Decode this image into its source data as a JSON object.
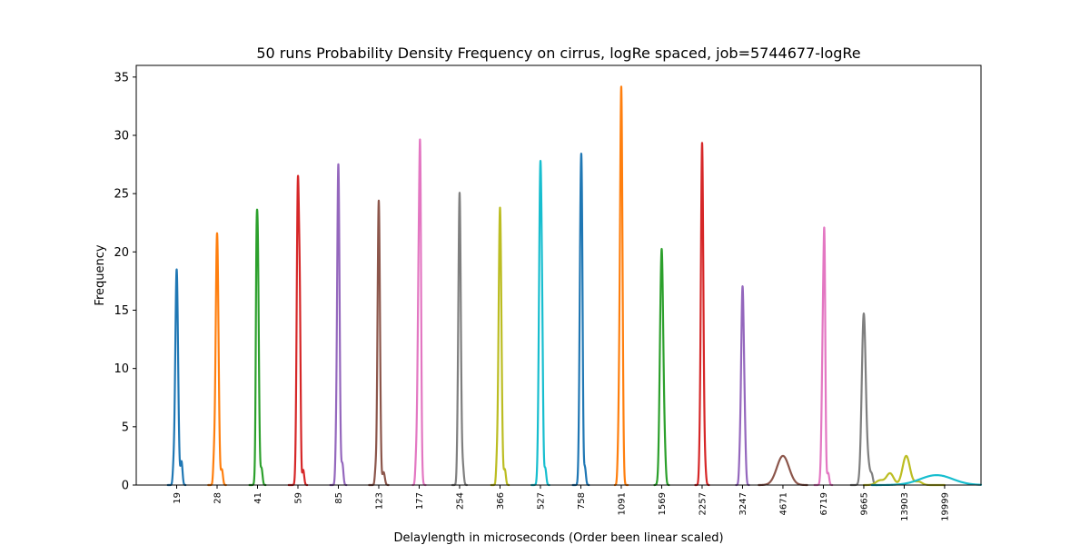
{
  "chart_data": {
    "type": "line",
    "title": "50 runs Probability Density Frequency on cirrus, logRe spaced, job=5744677-logRe",
    "xlabel": "Delaylength in microseconds (Order been linear scaled)",
    "ylabel": "Frequency",
    "ylim": [
      0,
      36
    ],
    "yticks": [
      0,
      5,
      10,
      15,
      20,
      25,
      30,
      35
    ],
    "xlim": [
      -1,
      19.9
    ],
    "grid": false,
    "categories": [
      "19",
      "28",
      "41",
      "59",
      "85",
      "123",
      "177",
      "254",
      "366",
      "527",
      "758",
      "1091",
      "1569",
      "2257",
      "3247",
      "4671",
      "6719",
      "9665",
      "13903",
      "19999"
    ],
    "series": [
      {
        "category": "19",
        "color": "#1f77b4",
        "peaks": [
          {
            "x": 0.0,
            "amp": 18.5,
            "w": 0.035
          },
          {
            "x": 0.12,
            "amp": 2.0,
            "w": 0.025
          },
          {
            "x": -0.08,
            "amp": 1.0,
            "w": 0.02
          }
        ]
      },
      {
        "category": "28",
        "color": "#ff7f0e",
        "peaks": [
          {
            "x": 0.0,
            "amp": 21.6,
            "w": 0.035
          },
          {
            "x": 0.12,
            "amp": 1.3,
            "w": 0.025
          },
          {
            "x": -0.08,
            "amp": 1.5,
            "w": 0.02
          }
        ]
      },
      {
        "category": "41",
        "color": "#2ca02c",
        "peaks": [
          {
            "x": 0.0,
            "amp": 22.2,
            "w": 0.03
          },
          {
            "x": 0.1,
            "amp": 1.4,
            "w": 0.025
          },
          {
            "x": -0.03,
            "amp": 6.4,
            "w": 0.015
          }
        ]
      },
      {
        "category": "59",
        "color": "#d62728",
        "peaks": [
          {
            "x": 0.0,
            "amp": 26.0,
            "w": 0.03
          },
          {
            "x": 0.05,
            "amp": 10.4,
            "w": 0.02
          },
          {
            "x": 0.13,
            "amp": 1.3,
            "w": 0.025
          }
        ]
      },
      {
        "category": "85",
        "color": "#9467bd",
        "peaks": [
          {
            "x": 0.0,
            "amp": 27.5,
            "w": 0.03
          },
          {
            "x": 0.1,
            "amp": 1.8,
            "w": 0.025
          },
          {
            "x": -0.06,
            "amp": 1.7,
            "w": 0.02
          }
        ]
      },
      {
        "category": "123",
        "color": "#8c564b",
        "peaks": [
          {
            "x": 0.0,
            "amp": 24.4,
            "w": 0.03
          },
          {
            "x": 0.12,
            "amp": 1.1,
            "w": 0.03
          },
          {
            "x": -0.08,
            "amp": 1.1,
            "w": 0.02
          }
        ]
      },
      {
        "category": "177",
        "color": "#e377c2",
        "peaks": [
          {
            "x": 0.0,
            "amp": 21.4,
            "w": 0.035
          },
          {
            "x": 0.03,
            "amp": 13.0,
            "w": 0.02
          },
          {
            "x": -0.08,
            "amp": 1.4,
            "w": 0.02
          }
        ]
      },
      {
        "category": "254",
        "color": "#7f7f7f",
        "peaks": [
          {
            "x": 0.0,
            "amp": 25.0,
            "w": 0.03
          },
          {
            "x": 0.08,
            "amp": 1.5,
            "w": 0.025
          },
          {
            "x": -0.05,
            "amp": 1.5,
            "w": 0.02
          }
        ]
      },
      {
        "category": "366",
        "color": "#bcbd22",
        "peaks": [
          {
            "x": 0.0,
            "amp": 23.8,
            "w": 0.035
          },
          {
            "x": 0.12,
            "amp": 1.3,
            "w": 0.025
          },
          {
            "x": -0.08,
            "amp": 1.3,
            "w": 0.02
          }
        ]
      },
      {
        "category": "527",
        "color": "#17becf",
        "peaks": [
          {
            "x": 0.0,
            "amp": 27.6,
            "w": 0.035
          },
          {
            "x": 0.05,
            "amp": 4.5,
            "w": 0.02
          },
          {
            "x": 0.12,
            "amp": 1.4,
            "w": 0.025
          }
        ]
      },
      {
        "category": "758",
        "color": "#1f77b4",
        "peaks": [
          {
            "x": 0.0,
            "amp": 24.6,
            "w": 0.03
          },
          {
            "x": 0.03,
            "amp": 8.5,
            "w": 0.02
          },
          {
            "x": 0.1,
            "amp": 1.5,
            "w": 0.025
          }
        ]
      },
      {
        "category": "1091",
        "color": "#ff7f0e",
        "peaks": [
          {
            "x": 0.0,
            "amp": 34.0,
            "w": 0.03
          },
          {
            "x": -0.05,
            "amp": 4.0,
            "w": 0.02
          },
          {
            "x": -0.08,
            "amp": 2.0,
            "w": 0.02
          }
        ]
      },
      {
        "category": "1569",
        "color": "#2ca02c",
        "peaks": [
          {
            "x": 0.0,
            "amp": 20.2,
            "w": 0.04
          },
          {
            "x": 0.08,
            "amp": 1.6,
            "w": 0.025
          },
          {
            "x": -0.05,
            "amp": 1.0,
            "w": 0.02
          }
        ]
      },
      {
        "category": "2257",
        "color": "#d62728",
        "peaks": [
          {
            "x": 0.0,
            "amp": 29.3,
            "w": 0.03
          },
          {
            "x": 0.07,
            "amp": 1.6,
            "w": 0.025
          },
          {
            "x": -0.06,
            "amp": 1.6,
            "w": 0.02
          }
        ]
      },
      {
        "category": "3247",
        "color": "#9467bd",
        "peaks": [
          {
            "x": 0.0,
            "amp": 16.9,
            "w": 0.035
          },
          {
            "x": 0.06,
            "amp": 2.5,
            "w": 0.025
          },
          {
            "x": -0.07,
            "amp": 1.3,
            "w": 0.02
          }
        ]
      },
      {
        "category": "4671",
        "color": "#8c564b",
        "peaks": [
          {
            "x": 0.0,
            "amp": 2.5,
            "w": 0.15
          }
        ]
      },
      {
        "category": "6719",
        "color": "#e377c2",
        "peaks": [
          {
            "x": 0.0,
            "amp": 15.2,
            "w": 0.035
          },
          {
            "x": 0.03,
            "amp": 10.4,
            "w": 0.02
          },
          {
            "x": 0.12,
            "amp": 1.0,
            "w": 0.025
          }
        ]
      },
      {
        "category": "9665",
        "color": "#7f7f7f",
        "peaks": [
          {
            "x": 0.0,
            "amp": 14.7,
            "w": 0.05
          },
          {
            "x": 0.12,
            "amp": 1.4,
            "w": 0.04
          },
          {
            "x": 0.2,
            "amp": 0.8,
            "w": 0.03
          }
        ]
      },
      {
        "category": "13903",
        "color": "#bcbd22",
        "peaks": [
          {
            "x": 0.05,
            "amp": 2.5,
            "w": 0.09
          },
          {
            "x": -0.35,
            "amp": 1.0,
            "w": 0.09
          },
          {
            "x": -0.6,
            "amp": 0.4,
            "w": 0.1
          },
          {
            "x": 0.35,
            "amp": 0.3,
            "w": 0.09
          }
        ]
      },
      {
        "category": "19999",
        "color": "#17becf",
        "peaks": [
          {
            "x": -0.2,
            "amp": 0.85,
            "w": 0.4
          }
        ]
      }
    ]
  }
}
